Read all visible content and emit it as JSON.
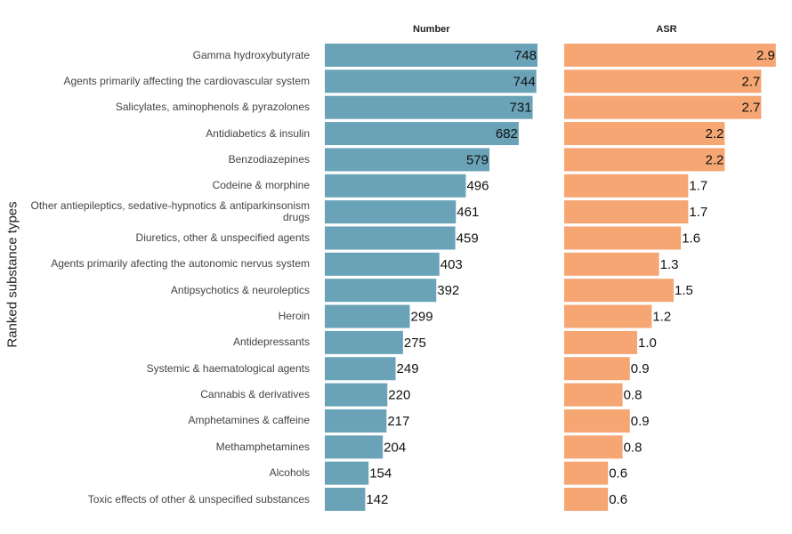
{
  "chart_data": {
    "type": "bar",
    "y_label": "Ranked substance types",
    "categories": [
      "Gamma hydroxybutyrate",
      "Agents primarily affecting the cardiovascular system",
      "Salicylates, aminophenols & pyrazolones",
      "Antidiabetics & insulin",
      "Benzodiazepines",
      "Codeine & morphine",
      "Other antiepileptics, sedative-hypnotics & antiparkinsonism drugs",
      "Diuretics, other & unspecified agents",
      "Agents primarily afecting the autonomic nervus system",
      "Antipsychotics & neuroleptics",
      "Heroin",
      "Antidepressants",
      "Systemic & haematological agents",
      "Cannabis & derivatives",
      "Amphetamines & caffeine",
      "Methamphetamines",
      "Alcohols",
      "Toxic effects of other & unspecified substances"
    ],
    "series": [
      {
        "name": "Number",
        "color": "#6aa3b8",
        "xlim": [
          0,
          800
        ],
        "values": [
          748,
          744,
          731,
          682,
          579,
          496,
          461,
          459,
          403,
          392,
          299,
          275,
          249,
          220,
          217,
          204,
          154,
          142
        ]
      },
      {
        "name": "ASR",
        "color": "#f5a672",
        "xlim": [
          0,
          3
        ],
        "values": [
          2.9,
          2.7,
          2.7,
          2.2,
          2.2,
          1.7,
          1.7,
          1.6,
          1.3,
          1.5,
          1.2,
          1.0,
          0.9,
          0.8,
          0.9,
          0.8,
          0.6,
          0.6
        ],
        "value_labels": [
          "2.9",
          "2.7",
          "2.7",
          "2.2",
          "2.2",
          "1.7",
          "1.7",
          "1.6",
          "1.3",
          "1.5",
          "1.2",
          "1.0",
          "0.9",
          "0.8",
          "0.9",
          "0.8",
          "0.6",
          "0.6"
        ]
      }
    ]
  }
}
